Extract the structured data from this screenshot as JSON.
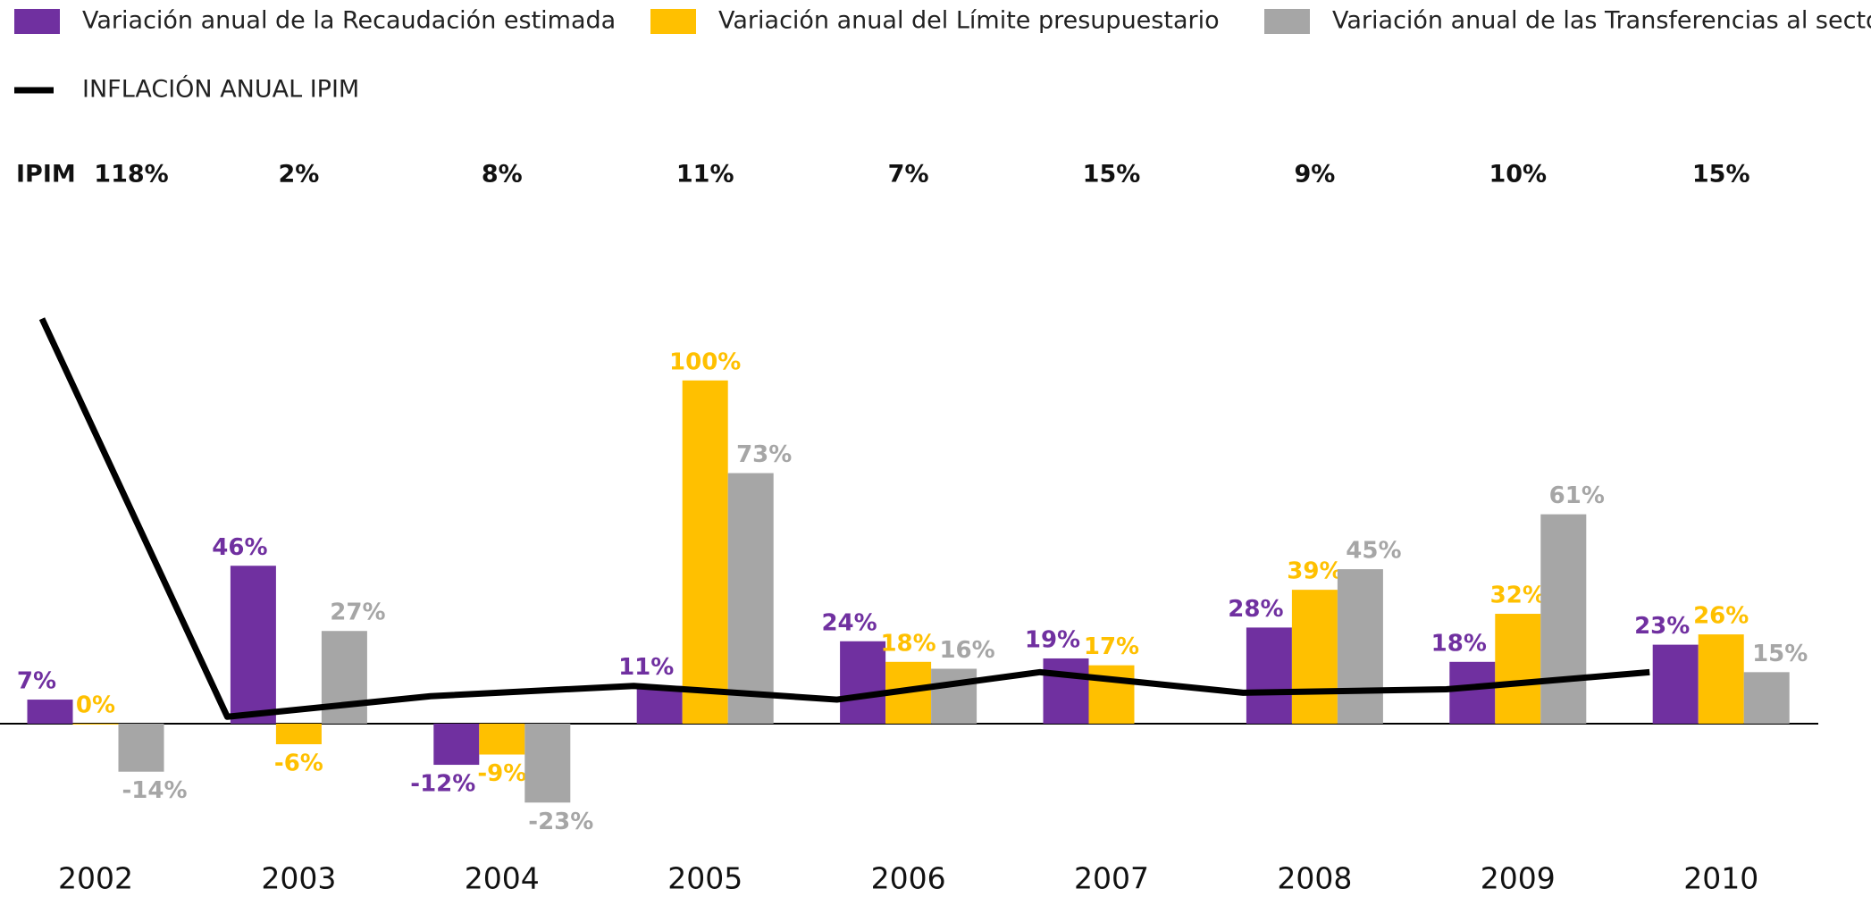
{
  "chart_data": {
    "type": "bar",
    "categories": [
      "2002",
      "2003",
      "2004",
      "2005",
      "2006",
      "2007",
      "2008",
      "2009",
      "2010"
    ],
    "ylim": [
      -40,
      120
    ],
    "line_label": "IPIM",
    "series": [
      {
        "name": "Variación anual de la Recaudación estimada",
        "color": "#7030a0",
        "values": [
          7,
          46,
          -12,
          11,
          24,
          19,
          28,
          18,
          23
        ],
        "value_labels": [
          "7%",
          "46%",
          "-12%",
          "11%",
          "24%",
          "19%",
          "28%",
          "18%",
          "23%"
        ]
      },
      {
        "name": "Variación anual del Límite presupuestario",
        "color": "#ffc000",
        "values": [
          0,
          -6,
          -9,
          100,
          18,
          17,
          39,
          32,
          26
        ],
        "value_labels": [
          "0%",
          "-6%",
          "-9%",
          "100%",
          "18%",
          "17%",
          "39%",
          "32%",
          "26%"
        ]
      },
      {
        "name": "Variación anual de las Transferencias al sector",
        "color": "#a6a6a6",
        "values": [
          -14,
          27,
          -23,
          73,
          16,
          null,
          45,
          61,
          15
        ],
        "value_labels": [
          "-14%",
          "27%",
          "-23%",
          "73%",
          "16%",
          null,
          "45%",
          "61%",
          "15%"
        ]
      },
      {
        "name": "INFLACIÓN ANUAL IPIM",
        "type": "line",
        "color": "#000000",
        "values": [
          118,
          2,
          8,
          11,
          7,
          15,
          9,
          10,
          15
        ],
        "value_labels": [
          "118%",
          "2%",
          "8%",
          "11%",
          "7%",
          "15%",
          "9%",
          "10%",
          "15%"
        ]
      }
    ]
  }
}
